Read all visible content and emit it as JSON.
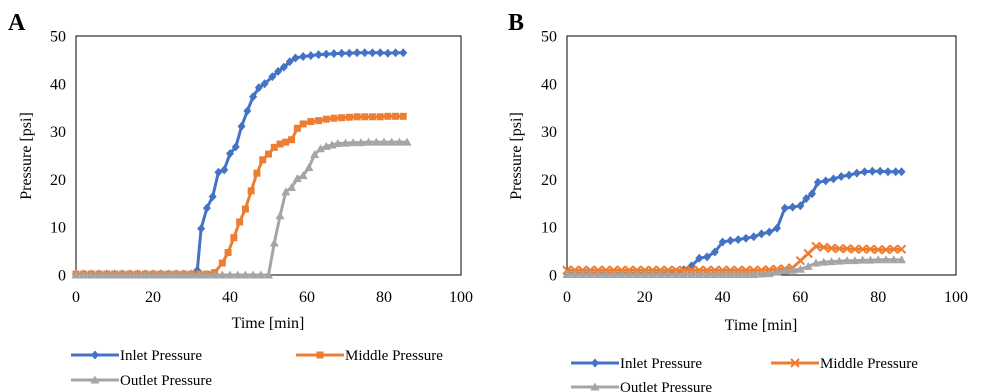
{
  "chart_data": [
    {
      "type": "line",
      "panel_label": "A",
      "xlabel": "Time [min]",
      "ylabel": "Pressure [psi]",
      "xlim": [
        0,
        100
      ],
      "ylim": [
        0,
        50
      ],
      "xticks": [
        "0",
        "20",
        "40",
        "60",
        "80",
        "100"
      ],
      "yticks": [
        "0",
        "10",
        "20",
        "30",
        "40",
        "50"
      ],
      "grid": false,
      "legend": "bottom",
      "series": [
        {
          "name": "Inlet Pressure",
          "color": "#4472C4",
          "marker": "diamond",
          "points": [
            [
              0,
              0.2
            ],
            [
              2,
              0.2
            ],
            [
              4,
              0.2
            ],
            [
              6,
              0.2
            ],
            [
              8,
              0.2
            ],
            [
              10,
              0.2
            ],
            [
              12,
              0.2
            ],
            [
              14,
              0.2
            ],
            [
              16,
              0.2
            ],
            [
              18,
              0.2
            ],
            [
              20,
              0.2
            ],
            [
              22,
              0.2
            ],
            [
              24,
              0.2
            ],
            [
              26,
              0.2
            ],
            [
              28,
              0.2
            ],
            [
              30,
              0.2
            ],
            [
              31.5,
              1
            ],
            [
              32.5,
              9.7
            ],
            [
              34,
              14
            ],
            [
              35.5,
              16.4
            ],
            [
              37,
              21.5
            ],
            [
              38.5,
              22
            ],
            [
              40,
              25.4
            ],
            [
              41.5,
              26.8
            ],
            [
              43,
              31.1
            ],
            [
              44.5,
              34.3
            ],
            [
              46,
              37.3
            ],
            [
              47.5,
              39.2
            ],
            [
              49,
              40
            ],
            [
              51,
              41.5
            ],
            [
              52.5,
              42.6
            ],
            [
              54,
              43.5
            ],
            [
              55.5,
              44.6
            ],
            [
              57,
              45.4
            ],
            [
              59,
              45.7
            ],
            [
              61,
              45.9
            ],
            [
              63,
              46.1
            ],
            [
              65,
              46.2
            ],
            [
              67,
              46.3
            ],
            [
              69,
              46.4
            ],
            [
              71,
              46.4
            ],
            [
              73,
              46.5
            ],
            [
              75,
              46.5
            ],
            [
              77,
              46.5
            ],
            [
              79,
              46.5
            ],
            [
              81,
              46.4
            ],
            [
              83,
              46.5
            ],
            [
              85,
              46.5
            ]
          ]
        },
        {
          "name": "Middle Pressure",
          "color": "#ED7D31",
          "marker": "square",
          "points": [
            [
              0,
              0.2
            ],
            [
              2,
              0.2
            ],
            [
              4,
              0.2
            ],
            [
              6,
              0.2
            ],
            [
              8,
              0.2
            ],
            [
              10,
              0.2
            ],
            [
              12,
              0.2
            ],
            [
              14,
              0.2
            ],
            [
              16,
              0.2
            ],
            [
              18,
              0.2
            ],
            [
              20,
              0.2
            ],
            [
              22,
              0.2
            ],
            [
              24,
              0.2
            ],
            [
              26,
              0.2
            ],
            [
              28,
              0.2
            ],
            [
              30,
              0.2
            ],
            [
              32,
              0.2
            ],
            [
              34,
              0.2
            ],
            [
              36,
              0.5
            ],
            [
              38,
              2.5
            ],
            [
              39.5,
              4.7
            ],
            [
              41,
              7.8
            ],
            [
              42.5,
              11.1
            ],
            [
              44,
              13.8
            ],
            [
              45.5,
              17.6
            ],
            [
              47,
              21.3
            ],
            [
              48.5,
              24.1
            ],
            [
              50,
              25.3
            ],
            [
              51.5,
              26.7
            ],
            [
              53,
              27.4
            ],
            [
              54.5,
              27.8
            ],
            [
              56,
              28.3
            ],
            [
              57.5,
              30.7
            ],
            [
              59,
              31.6
            ],
            [
              61,
              32.1
            ],
            [
              63,
              32.3
            ],
            [
              65,
              32.6
            ],
            [
              67,
              32.8
            ],
            [
              69,
              32.9
            ],
            [
              71,
              33
            ],
            [
              73,
              33.1
            ],
            [
              75,
              33.1
            ],
            [
              77,
              33.1
            ],
            [
              79,
              33.1
            ],
            [
              81,
              33.2
            ],
            [
              83,
              33.2
            ],
            [
              85,
              33.2
            ]
          ]
        },
        {
          "name": "Outlet Pressure",
          "color": "#A5A5A5",
          "marker": "triangle",
          "points": [
            [
              0,
              0
            ],
            [
              2,
              0
            ],
            [
              4,
              0
            ],
            [
              6,
              0
            ],
            [
              8,
              0
            ],
            [
              10,
              0
            ],
            [
              12,
              0
            ],
            [
              14,
              0
            ],
            [
              16,
              0
            ],
            [
              18,
              0
            ],
            [
              20,
              0
            ],
            [
              22,
              0
            ],
            [
              24,
              0
            ],
            [
              26,
              0
            ],
            [
              28,
              0
            ],
            [
              30,
              0
            ],
            [
              32,
              0
            ],
            [
              34,
              0
            ],
            [
              36,
              0
            ],
            [
              38,
              0
            ],
            [
              40,
              0
            ],
            [
              42,
              0
            ],
            [
              44,
              0
            ],
            [
              46,
              0
            ],
            [
              48,
              0
            ],
            [
              50,
              0
            ],
            [
              51.5,
              6.7
            ],
            [
              53,
              12.4
            ],
            [
              54.5,
              17.4
            ],
            [
              56,
              18.3
            ],
            [
              57.5,
              20.2
            ],
            [
              59,
              20.8
            ],
            [
              60.5,
              22.5
            ],
            [
              62,
              25.2
            ],
            [
              63.5,
              26.4
            ],
            [
              65,
              26.9
            ],
            [
              66.5,
              27.2
            ],
            [
              68,
              27.5
            ],
            [
              70,
              27.6
            ],
            [
              72,
              27.7
            ],
            [
              74,
              27.7
            ],
            [
              76,
              27.8
            ],
            [
              78,
              27.8
            ],
            [
              80,
              27.8
            ],
            [
              82,
              27.8
            ],
            [
              84,
              27.8
            ],
            [
              86,
              27.8
            ]
          ]
        }
      ]
    },
    {
      "type": "line",
      "panel_label": "B",
      "xlabel": "Time [min]",
      "ylabel": "Pressure [psi]",
      "xlim": [
        0,
        100
      ],
      "ylim": [
        0,
        50
      ],
      "xticks": [
        "0",
        "20",
        "40",
        "60",
        "80",
        "100"
      ],
      "yticks": [
        "0",
        "10",
        "20",
        "30",
        "40",
        "50"
      ],
      "grid": false,
      "legend": "bottom",
      "series": [
        {
          "name": "Inlet Pressure",
          "color": "#4472C4",
          "marker": "diamond",
          "points": [
            [
              0,
              0.3
            ],
            [
              2,
              0.3
            ],
            [
              4,
              0.3
            ],
            [
              6,
              0.3
            ],
            [
              8,
              0.3
            ],
            [
              10,
              0.3
            ],
            [
              12,
              0.3
            ],
            [
              14,
              0.3
            ],
            [
              16,
              0.3
            ],
            [
              18,
              0.3
            ],
            [
              20,
              0.3
            ],
            [
              22,
              0.3
            ],
            [
              24,
              0.3
            ],
            [
              26,
              0.4
            ],
            [
              28,
              0.6
            ],
            [
              30,
              1.1
            ],
            [
              32,
              1.9
            ],
            [
              34,
              3.5
            ],
            [
              36,
              3.8
            ],
            [
              38,
              4.8
            ],
            [
              40,
              6.9
            ],
            [
              42,
              7.2
            ],
            [
              44,
              7.4
            ],
            [
              46,
              7.7
            ],
            [
              48,
              8.0
            ],
            [
              50,
              8.6
            ],
            [
              52,
              9.0
            ],
            [
              54,
              9.8
            ],
            [
              56,
              14.0
            ],
            [
              58,
              14.2
            ],
            [
              60,
              14.5
            ],
            [
              61.5,
              16.0
            ],
            [
              63,
              17.0
            ],
            [
              64.5,
              19.4
            ],
            [
              66.5,
              19.7
            ],
            [
              68.5,
              20.1
            ],
            [
              70.5,
              20.6
            ],
            [
              72.5,
              20.9
            ],
            [
              74.5,
              21.3
            ],
            [
              76.5,
              21.6
            ],
            [
              78.5,
              21.7
            ],
            [
              80.5,
              21.7
            ],
            [
              82.5,
              21.6
            ],
            [
              84.5,
              21.6
            ],
            [
              86,
              21.6
            ]
          ]
        },
        {
          "name": "Middle Pressure",
          "color": "#ED7D31",
          "marker": "x",
          "points": [
            [
              0,
              1
            ],
            [
              2,
              1
            ],
            [
              4,
              1
            ],
            [
              6,
              1
            ],
            [
              8,
              1
            ],
            [
              10,
              1
            ],
            [
              12,
              1
            ],
            [
              14,
              1
            ],
            [
              16,
              1
            ],
            [
              18,
              1
            ],
            [
              20,
              1
            ],
            [
              22,
              1
            ],
            [
              24,
              1
            ],
            [
              26,
              1
            ],
            [
              28,
              1
            ],
            [
              30,
              1
            ],
            [
              32,
              1
            ],
            [
              34,
              1
            ],
            [
              36,
              1
            ],
            [
              38,
              1
            ],
            [
              40,
              1
            ],
            [
              42,
              1
            ],
            [
              44,
              1
            ],
            [
              46,
              1
            ],
            [
              48,
              1
            ],
            [
              50,
              1
            ],
            [
              52,
              1.1
            ],
            [
              54,
              1.2
            ],
            [
              56,
              1.3
            ],
            [
              58,
              1.5
            ],
            [
              60,
              3.0
            ],
            [
              62,
              4.5
            ],
            [
              64,
              6.0
            ],
            [
              66,
              5.8
            ],
            [
              68,
              5.6
            ],
            [
              70,
              5.5
            ],
            [
              72,
              5.5
            ],
            [
              74,
              5.4
            ],
            [
              76,
              5.4
            ],
            [
              78,
              5.4
            ],
            [
              80,
              5.3
            ],
            [
              82,
              5.3
            ],
            [
              84,
              5.4
            ],
            [
              86,
              5.4
            ]
          ]
        },
        {
          "name": "Outlet Pressure",
          "color": "#A5A5A5",
          "marker": "triangle",
          "points": [
            [
              0,
              0.1
            ],
            [
              2,
              0.1
            ],
            [
              4,
              0.1
            ],
            [
              6,
              0.1
            ],
            [
              8,
              0.1
            ],
            [
              10,
              0.1
            ],
            [
              12,
              0.1
            ],
            [
              14,
              0.1
            ],
            [
              16,
              0.1
            ],
            [
              18,
              0.1
            ],
            [
              20,
              0.1
            ],
            [
              22,
              0.1
            ],
            [
              24,
              0.1
            ],
            [
              26,
              0.1
            ],
            [
              28,
              0.1
            ],
            [
              30,
              0.1
            ],
            [
              32,
              0.1
            ],
            [
              34,
              0.1
            ],
            [
              36,
              0.1
            ],
            [
              38,
              0.1
            ],
            [
              40,
              0.1
            ],
            [
              42,
              0.1
            ],
            [
              44,
              0.1
            ],
            [
              46,
              0.1
            ],
            [
              48,
              0.1
            ],
            [
              50,
              0.2
            ],
            [
              52,
              0.3
            ],
            [
              54,
              0.6
            ],
            [
              56,
              0.8
            ],
            [
              58,
              1.0
            ],
            [
              60,
              1.2
            ],
            [
              62,
              1.8
            ],
            [
              64,
              2.5
            ],
            [
              66,
              2.7
            ],
            [
              68,
              2.8
            ],
            [
              70,
              2.9
            ],
            [
              72,
              3.0
            ],
            [
              74,
              3.0
            ],
            [
              76,
              3.1
            ],
            [
              78,
              3.1
            ],
            [
              80,
              3.2
            ],
            [
              82,
              3.2
            ],
            [
              84,
              3.2
            ],
            [
              86,
              3.2
            ]
          ]
        }
      ]
    }
  ]
}
